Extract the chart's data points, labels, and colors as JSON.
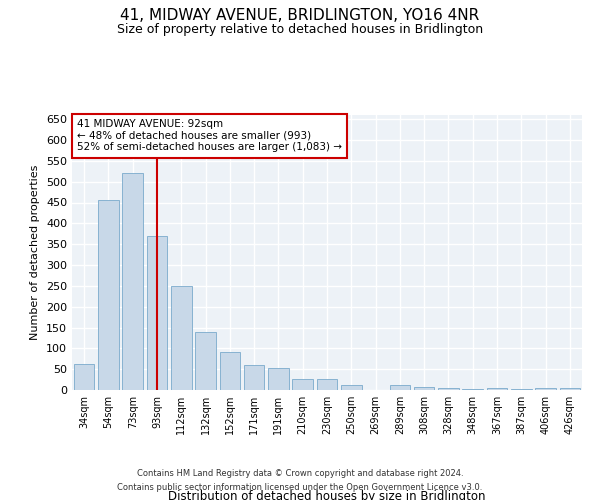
{
  "title": "41, MIDWAY AVENUE, BRIDLINGTON, YO16 4NR",
  "subtitle": "Size of property relative to detached houses in Bridlington",
  "xlabel": "Distribution of detached houses by size in Bridlington",
  "ylabel": "Number of detached properties",
  "categories": [
    "34sqm",
    "54sqm",
    "73sqm",
    "93sqm",
    "112sqm",
    "132sqm",
    "152sqm",
    "171sqm",
    "191sqm",
    "210sqm",
    "230sqm",
    "250sqm",
    "269sqm",
    "289sqm",
    "308sqm",
    "328sqm",
    "348sqm",
    "367sqm",
    "387sqm",
    "406sqm",
    "426sqm"
  ],
  "values": [
    62,
    457,
    522,
    370,
    249,
    139,
    91,
    61,
    54,
    27,
    27,
    11,
    0,
    11,
    7,
    5,
    2,
    6,
    2,
    5,
    4
  ],
  "bar_color": "#c8d8e8",
  "bar_edge_color": "#7aaacc",
  "vline_x": 3,
  "vline_color": "#cc0000",
  "annotation_text": "41 MIDWAY AVENUE: 92sqm\n← 48% of detached houses are smaller (993)\n52% of semi-detached houses are larger (1,083) →",
  "annotation_box_color": "#ffffff",
  "annotation_box_edge": "#cc0000",
  "ylim": [
    0,
    660
  ],
  "yticks": [
    0,
    50,
    100,
    150,
    200,
    250,
    300,
    350,
    400,
    450,
    500,
    550,
    600,
    650
  ],
  "bg_color": "#edf2f7",
  "grid_color": "#ffffff",
  "footer_line1": "Contains HM Land Registry data © Crown copyright and database right 2024.",
  "footer_line2": "Contains public sector information licensed under the Open Government Licence v3.0."
}
